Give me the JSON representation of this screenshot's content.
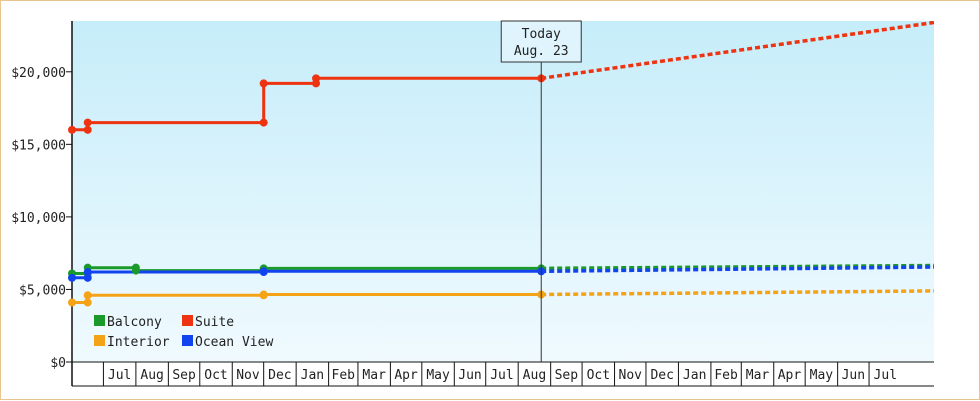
{
  "chart_data": {
    "type": "line",
    "title": "",
    "xlabel": "",
    "ylabel": "",
    "ylim": [
      0,
      23500
    ],
    "y_ticks": [
      0,
      5000,
      10000,
      15000,
      20000
    ],
    "y_tick_labels": [
      "$0",
      "$5,000",
      "$10,000",
      "$15,000",
      "$20,000"
    ],
    "x_range": [
      "2022-06-01",
      "2024-09-01"
    ],
    "months": [
      {
        "start": "2022-07-01",
        "label": "Jul"
      },
      {
        "start": "2022-08-01",
        "label": "Aug"
      },
      {
        "start": "2022-09-01",
        "label": "Sep"
      },
      {
        "start": "2022-10-01",
        "label": "Oct"
      },
      {
        "start": "2022-11-01",
        "label": "Nov"
      },
      {
        "start": "2022-12-01",
        "label": "Dec"
      },
      {
        "start": "2023-01-01",
        "label": "Jan"
      },
      {
        "start": "2023-02-01",
        "label": "Feb"
      },
      {
        "start": "2023-03-01",
        "label": "Mar"
      },
      {
        "start": "2023-04-01",
        "label": "Apr"
      },
      {
        "start": "2023-05-01",
        "label": "May"
      },
      {
        "start": "2023-06-01",
        "label": "Jun"
      },
      {
        "start": "2023-07-01",
        "label": "Jul"
      },
      {
        "start": "2023-08-01",
        "label": "Aug"
      },
      {
        "start": "2023-09-01",
        "label": "Sep"
      },
      {
        "start": "2023-10-01",
        "label": "Oct"
      },
      {
        "start": "2023-11-01",
        "label": "Nov"
      },
      {
        "start": "2023-12-01",
        "label": "Dec"
      },
      {
        "start": "2024-01-01",
        "label": "Jan"
      },
      {
        "start": "2024-02-01",
        "label": "Feb"
      },
      {
        "start": "2024-03-01",
        "label": "Mar"
      },
      {
        "start": "2024-04-01",
        "label": "Apr"
      },
      {
        "start": "2024-05-01",
        "label": "May"
      },
      {
        "start": "2024-06-01",
        "label": "Jun"
      },
      {
        "start": "2024-07-01",
        "label": "Jul"
      }
    ],
    "today": {
      "date": "2023-08-23",
      "label_line1": "Today",
      "label_line2": "Aug. 23"
    },
    "legend_placement": "bottom-left",
    "grid": false,
    "series": [
      {
        "name": "Balcony",
        "color": "#1a9a2a",
        "points": [
          {
            "x": "2022-06-01",
            "y": 6100
          },
          {
            "x": "2022-06-16",
            "y": 6100
          },
          {
            "x": "2022-06-16",
            "y": 6500
          },
          {
            "x": "2022-08-01",
            "y": 6500
          },
          {
            "x": "2022-08-01",
            "y": 6300
          },
          {
            "x": "2022-12-01",
            "y": 6300
          },
          {
            "x": "2022-12-01",
            "y": 6450
          },
          {
            "x": "2023-08-23",
            "y": 6450
          }
        ],
        "forecast": [
          {
            "x": "2023-08-23",
            "y": 6450
          },
          {
            "x": "2024-09-01",
            "y": 6650
          }
        ]
      },
      {
        "name": "Suite",
        "color": "#ee3311",
        "points": [
          {
            "x": "2022-06-01",
            "y": 16000
          },
          {
            "x": "2022-06-16",
            "y": 16000
          },
          {
            "x": "2022-06-16",
            "y": 16500
          },
          {
            "x": "2022-12-01",
            "y": 16500
          },
          {
            "x": "2022-12-01",
            "y": 19200
          },
          {
            "x": "2023-01-20",
            "y": 19200
          },
          {
            "x": "2023-01-20",
            "y": 19550
          },
          {
            "x": "2023-08-23",
            "y": 19550
          }
        ],
        "forecast": [
          {
            "x": "2023-08-23",
            "y": 19550
          },
          {
            "x": "2024-09-01",
            "y": 23400
          }
        ]
      },
      {
        "name": "Interior",
        "color": "#f5a316",
        "points": [
          {
            "x": "2022-06-01",
            "y": 4100
          },
          {
            "x": "2022-06-16",
            "y": 4100
          },
          {
            "x": "2022-06-16",
            "y": 4600
          },
          {
            "x": "2022-12-01",
            "y": 4600
          },
          {
            "x": "2022-12-01",
            "y": 4650
          },
          {
            "x": "2023-08-23",
            "y": 4650
          }
        ],
        "forecast": [
          {
            "x": "2023-08-23",
            "y": 4650
          },
          {
            "x": "2024-09-01",
            "y": 4900
          }
        ]
      },
      {
        "name": "Ocean View",
        "color": "#1144ee",
        "points": [
          {
            "x": "2022-06-01",
            "y": 5800
          },
          {
            "x": "2022-06-16",
            "y": 5800
          },
          {
            "x": "2022-06-16",
            "y": 6200
          },
          {
            "x": "2022-12-01",
            "y": 6200
          },
          {
            "x": "2022-12-01",
            "y": 6250
          },
          {
            "x": "2023-08-23",
            "y": 6250
          }
        ],
        "forecast": [
          {
            "x": "2023-08-23",
            "y": 6250
          },
          {
            "x": "2024-09-01",
            "y": 6550
          }
        ]
      }
    ]
  }
}
